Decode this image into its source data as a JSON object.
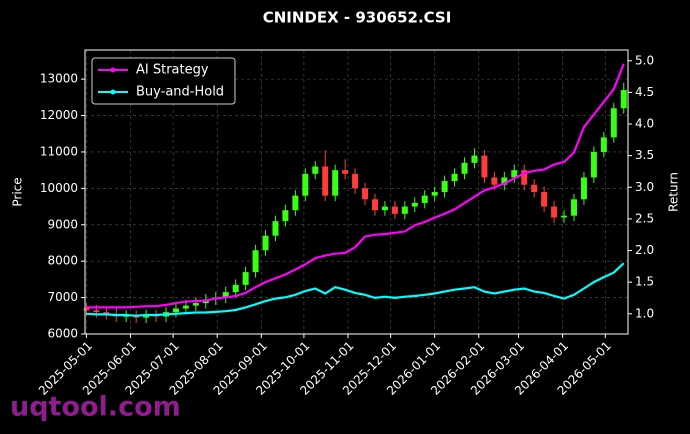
{
  "chart_data": {
    "type": "candlestick",
    "title": "CNINDEX - 930652.CSI",
    "ylabel": "Price",
    "y2label": "Return",
    "watermark": "uqtool.com",
    "grid": true,
    "legend": "upper left",
    "up_color": "#39ff14",
    "down_color": "#ff3b3b",
    "x": [
      "2025-05-01",
      "2025-05-08",
      "2025-05-15",
      "2025-05-22",
      "2025-05-29",
      "2025-06-05",
      "2025-06-12",
      "2025-06-19",
      "2025-06-26",
      "2025-07-03",
      "2025-07-10",
      "2025-07-17",
      "2025-07-24",
      "2025-07-31",
      "2025-08-07",
      "2025-08-14",
      "2025-08-21",
      "2025-08-28",
      "2025-09-04",
      "2025-09-11",
      "2025-09-18",
      "2025-09-25",
      "2025-10-02",
      "2025-10-09",
      "2025-10-16",
      "2025-10-23",
      "2025-10-30",
      "2025-11-06",
      "2025-11-13",
      "2025-11-20",
      "2025-11-27",
      "2025-12-04",
      "2025-12-11",
      "2025-12-18",
      "2025-12-25",
      "2026-01-01",
      "2026-01-08",
      "2026-01-15",
      "2026-01-22",
      "2026-01-29",
      "2026-02-05",
      "2026-02-12",
      "2026-02-19",
      "2026-02-26",
      "2026-03-05",
      "2026-03-12",
      "2026-03-19",
      "2026-03-26",
      "2026-04-02",
      "2026-04-09",
      "2026-04-16",
      "2026-04-23",
      "2026-04-30",
      "2026-05-07",
      "2026-05-14"
    ],
    "open": [
      6700,
      6650,
      6600,
      6550,
      6480,
      6500,
      6450,
      6520,
      6480,
      6600,
      6700,
      6780,
      6850,
      6950,
      7000,
      7150,
      7350,
      7700,
      8300,
      8700,
      9100,
      9400,
      9800,
      10400,
      10600,
      9800,
      10500,
      10400,
      10000,
      9700,
      9400,
      9500,
      9300,
      9500,
      9600,
      9800,
      9900,
      10200,
      10400,
      10700,
      10900,
      10300,
      10100,
      10300,
      10500,
      10100,
      9900,
      9500,
      9200,
      9250,
      9700,
      10300,
      11000,
      11400,
      12200
    ],
    "high": [
      6850,
      6800,
      6750,
      6700,
      6650,
      6650,
      6670,
      6670,
      6750,
      6850,
      6930,
      7000,
      7100,
      7150,
      7300,
      7500,
      7850,
      8450,
      8850,
      9250,
      9550,
      9950,
      10550,
      10750,
      11050,
      10650,
      10800,
      10550,
      10150,
      9850,
      9650,
      9650,
      9650,
      9750,
      9950,
      10050,
      10350,
      10550,
      10850,
      11100,
      11050,
      10450,
      10450,
      10650,
      10650,
      10250,
      10050,
      9650,
      9400,
      9850,
      10450,
      11150,
      11550,
      12350,
      12900
    ],
    "low": [
      6500,
      6450,
      6400,
      6330,
      6330,
      6300,
      6300,
      6330,
      6330,
      6450,
      6550,
      6630,
      6700,
      6800,
      6850,
      7000,
      7200,
      7550,
      8150,
      8550,
      8950,
      9250,
      9650,
      10250,
      9650,
      9650,
      10250,
      9850,
      9550,
      9250,
      9250,
      9150,
      9150,
      9350,
      9450,
      9650,
      9750,
      10050,
      10250,
      10550,
      10150,
      9950,
      9950,
      10150,
      9950,
      9750,
      9350,
      9050,
      9050,
      9100,
      9550,
      10150,
      10850,
      11250,
      12050
    ],
    "close": [
      6650,
      6600,
      6550,
      6480,
      6500,
      6450,
      6520,
      6480,
      6600,
      6700,
      6780,
      6850,
      6950,
      7000,
      7150,
      7350,
      7700,
      8300,
      8700,
      9100,
      9400,
      9800,
      10400,
      10600,
      9800,
      10500,
      10400,
      10000,
      9700,
      9400,
      9500,
      9300,
      9500,
      9600,
      9800,
      9900,
      10200,
      10400,
      10700,
      10900,
      10300,
      10100,
      10300,
      10500,
      10100,
      9900,
      9500,
      9200,
      9250,
      9700,
      10300,
      11000,
      11400,
      12200,
      12700
    ],
    "series": [
      {
        "name": "AI Strategy",
        "color": "#ff00ff",
        "axis": "y2",
        "values": [
          1.1,
          1.1,
          1.1,
          1.1,
          1.1,
          1.11,
          1.12,
          1.12,
          1.14,
          1.17,
          1.19,
          1.2,
          1.21,
          1.24,
          1.26,
          1.28,
          1.33,
          1.42,
          1.5,
          1.56,
          1.62,
          1.7,
          1.78,
          1.88,
          1.92,
          1.95,
          1.96,
          2.05,
          2.22,
          2.25,
          2.26,
          2.28,
          2.3,
          2.4,
          2.45,
          2.52,
          2.58,
          2.65,
          2.75,
          2.85,
          2.95,
          3.0,
          3.06,
          3.14,
          3.22,
          3.26,
          3.28,
          3.36,
          3.4,
          3.55,
          3.95,
          4.15,
          4.35,
          4.55,
          4.95
        ]
      },
      {
        "name": "Buy-and-Hold",
        "color": "#00ffff",
        "axis": "y2",
        "values": [
          1.0,
          0.99,
          0.99,
          0.98,
          0.98,
          0.97,
          0.98,
          0.98,
          0.99,
          1.0,
          1.01,
          1.02,
          1.02,
          1.03,
          1.04,
          1.06,
          1.1,
          1.15,
          1.2,
          1.24,
          1.26,
          1.3,
          1.36,
          1.4,
          1.32,
          1.42,
          1.38,
          1.33,
          1.3,
          1.25,
          1.27,
          1.25,
          1.27,
          1.28,
          1.3,
          1.32,
          1.35,
          1.38,
          1.4,
          1.42,
          1.35,
          1.32,
          1.35,
          1.38,
          1.4,
          1.35,
          1.33,
          1.28,
          1.24,
          1.3,
          1.4,
          1.5,
          1.58,
          1.65,
          1.8
        ]
      }
    ],
    "xlim": [
      "2025-04-30",
      "2026-05-17"
    ],
    "xticks": [
      "2025-05-01",
      "2025-06-01",
      "2025-07-01",
      "2025-08-01",
      "2025-09-01",
      "2025-10-01",
      "2025-11-01",
      "2025-12-01",
      "2026-01-01",
      "2026-02-01",
      "2026-03-01",
      "2026-04-01",
      "2026-05-01"
    ],
    "ylim": [
      6000,
      13800
    ],
    "yticks": [
      6000,
      7000,
      8000,
      9000,
      10000,
      11000,
      12000,
      13000
    ],
    "y2lim": [
      0.68,
      5.17
    ],
    "y2ticks": [
      {
        "value": 1,
        "label": "1.0"
      },
      {
        "value": 1.5,
        "label": "1.5"
      },
      {
        "value": 2,
        "label": "2.0"
      },
      {
        "value": 2.5,
        "label": "2.5"
      },
      {
        "value": 3,
        "label": "3.0"
      },
      {
        "value": 3.5,
        "label": "3.5"
      },
      {
        "value": 4,
        "label": "4.0"
      },
      {
        "value": 4.5,
        "label": "4.5"
      },
      {
        "value": 5,
        "label": "5.0"
      }
    ]
  }
}
